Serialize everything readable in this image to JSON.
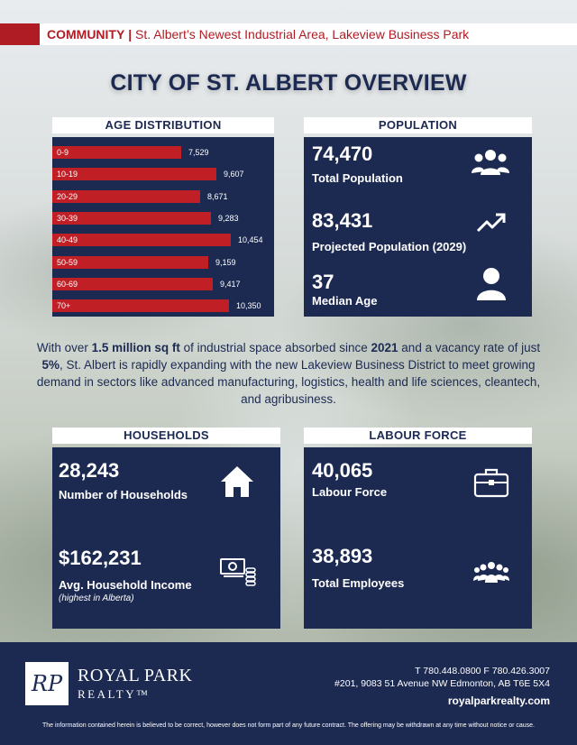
{
  "header": {
    "section": "COMMUNITY",
    "separator": "|",
    "subtitle": "St. Albert’s Newest Industrial Area, Lakeview Business Park"
  },
  "title": "CITY OF ST. ALBERT OVERVIEW",
  "age_distribution": {
    "heading": "AGE DISTRIBUTION",
    "chart_data": {
      "type": "bar",
      "orientation": "horizontal",
      "categories": [
        "0-9",
        "10-19",
        "20-29",
        "30-39",
        "40-49",
        "50-59",
        "60-69",
        "70+"
      ],
      "values": [
        7529,
        9607,
        8671,
        9283,
        10454,
        9159,
        9417,
        10350
      ],
      "value_labels": [
        "7,529",
        "9,607",
        "8,671",
        "9,283",
        "10,454",
        "9,159",
        "9,417",
        "10,350"
      ],
      "bar_color": "#c01f26"
    }
  },
  "population": {
    "heading": "POPULATION",
    "total_value": "74,470",
    "total_label": "Total Population",
    "projected_value": "83,431",
    "projected_label": "Projected Population (2029)",
    "median_value": "37",
    "median_label": "Median Age"
  },
  "paragraph": {
    "p1": "With over ",
    "b1": "1.5 million sq ft",
    "p2": " of industrial space absorbed since ",
    "b2": "2021",
    "p3": " and a vacancy rate of just ",
    "b3": "5%",
    "p4": ", St. Albert is rapidly expanding with the new Lakeview Business District to meet growing demand in sectors like advanced manufacturing, logistics, health and life sciences, cleantech, and agribusiness."
  },
  "households": {
    "heading": "HOUSEHOLDS",
    "count_value": "28,243",
    "count_label": "Number of Households",
    "income_value": "$162,231",
    "income_label": "Avg. Household Income",
    "income_note": "(highest in Alberta)"
  },
  "labour": {
    "heading": "LABOUR FORCE",
    "force_value": "40,065",
    "force_label": "Labour Force",
    "employees_value": "38,893",
    "employees_label": "Total Employees"
  },
  "footer": {
    "logo_mark": "RP",
    "brand": "ROYAL PARK",
    "brand_sub": "REALTY™",
    "phone": "T 780.448.0800   F 780.426.3007",
    "address": "#201, 9083 51 Avenue NW Edmonton, AB T6E 5X4",
    "website": "royalparkrealty.com",
    "disclaimer": "The information contained herein is believed to be correct, however does not form part of any future contract. The offering may be withdrawn at any time without notice or cause."
  },
  "colors": {
    "navy": "#1c2a52",
    "red": "#b01c24"
  }
}
